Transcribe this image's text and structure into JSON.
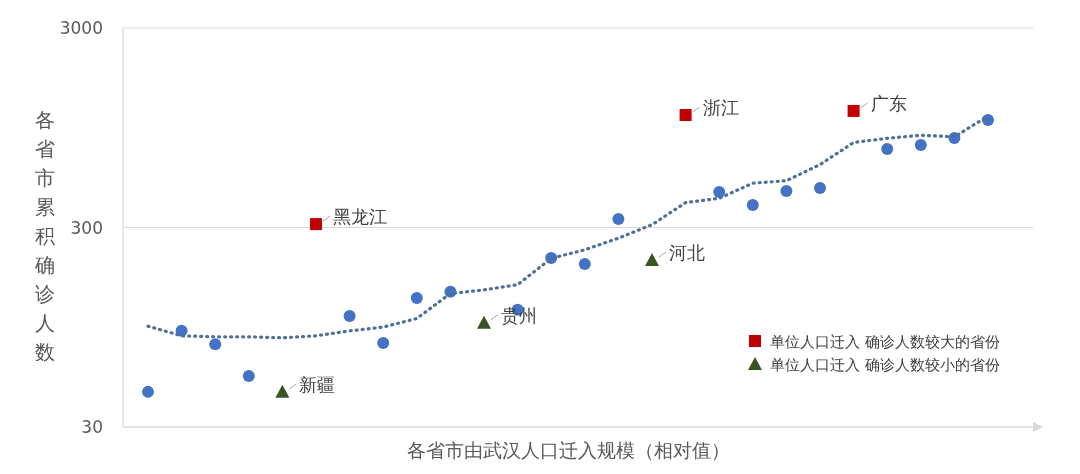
{
  "chart_data": {
    "type": "scatter",
    "xlabel": "各省市由武汉人口迁入规模（相对值）",
    "ylabel": "各省市累积确诊人数",
    "categories": [
      null,
      null,
      null,
      null,
      null,
      null,
      null,
      null,
      null,
      null,
      null,
      null,
      null,
      null,
      null,
      null,
      null,
      null,
      null,
      null,
      null,
      null,
      null,
      null,
      null,
      null
    ],
    "ylim": [
      30,
      3000
    ],
    "yticks": [
      30,
      300,
      3000
    ],
    "log": "y",
    "grid": "y",
    "tick_labels": "y",
    "legend": "bottom right",
    "marker": "circle",
    "series": [
      {
        "color": "#4472c4",
        "values": [
          45,
          91,
          78,
          54,
          null,
          null,
          108,
          79,
          133,
          143,
          null,
          116,
          211,
          197,
          331,
          null,
          null,
          452,
          389,
          457,
          473,
          null,
          742,
          778,
          843,
          1038
        ]
      },
      {
        "name": "单位人口迁入 确诊人数较大的省份",
        "color": "#c00000",
        "marker": "square",
        "values": [
          null,
          null,
          null,
          null,
          null,
          312,
          null,
          null,
          null,
          null,
          null,
          null,
          null,
          null,
          null,
          null,
          1099,
          null,
          null,
          null,
          null,
          1152,
          null,
          null,
          null,
          null
        ],
        "value_labels": [
          null,
          null,
          null,
          null,
          null,
          "黑龙江",
          null,
          null,
          null,
          null,
          null,
          null,
          null,
          null,
          null,
          null,
          "浙江",
          null,
          null,
          null,
          null,
          "广东",
          null,
          null,
          null,
          null
        ]
      },
      {
        "name": "单位人口迁入 确诊人数较小的省份",
        "color": "#375623",
        "marker": "triangle",
        "values": [
          null,
          null,
          null,
          null,
          45,
          null,
          null,
          null,
          null,
          null,
          100,
          null,
          null,
          null,
          null,
          206,
          null,
          null,
          null,
          null,
          null,
          null,
          null,
          null,
          null,
          null
        ],
        "value_labels": [
          null,
          null,
          null,
          null,
          "新疆",
          null,
          null,
          null,
          null,
          null,
          "贵州",
          null,
          null,
          null,
          null,
          "河北",
          null,
          null,
          null,
          null,
          null,
          null,
          null,
          null,
          null,
          null
        ]
      },
      {
        "type": "line",
        "color": "#4e6f9a",
        "line_style": "dotted",
        "marker": "none",
        "values": [
          96,
          86,
          85,
          85,
          84,
          86,
          91,
          95,
          105,
          140,
          146,
          155,
          210,
          232,
          265,
          310,
          400,
          420,
          500,
          515,
          620,
          800,
          840,
          870,
          855,
          1085
        ]
      }
    ]
  }
}
